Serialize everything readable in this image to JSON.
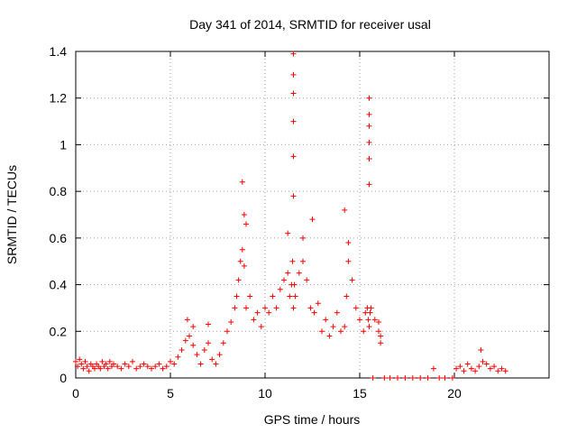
{
  "chart_data": {
    "type": "scatter",
    "title": "Day 341 of 2014, SRMTID for receiver usal",
    "xlabel": "GPS time / hours",
    "ylabel": "SRMTID / TECUs",
    "xlim": [
      0,
      25
    ],
    "ylim": [
      0,
      1.4
    ],
    "xticks": [
      0,
      5,
      10,
      15,
      20
    ],
    "xtick_labels": [
      "0",
      "5",
      "10",
      "15",
      "20"
    ],
    "yticks": [
      0,
      0.2,
      0.4,
      0.6,
      0.8,
      1.0,
      1.2,
      1.4
    ],
    "ytick_labels": [
      "0",
      "0.2",
      "0.4",
      "0.6",
      "0.8",
      "1",
      "1.2",
      "1.4"
    ],
    "grid": true,
    "marker": "+",
    "color": "#ff0000",
    "series": [
      {
        "name": "SRMTID",
        "x": [
          0.0,
          0.1,
          0.2,
          0.3,
          0.4,
          0.5,
          0.6,
          0.7,
          0.8,
          0.9,
          1.0,
          1.1,
          1.2,
          1.3,
          1.4,
          1.5,
          1.6,
          1.7,
          1.8,
          1.9,
          2.0,
          2.2,
          2.4,
          2.6,
          2.8,
          3.0,
          3.2,
          3.4,
          3.6,
          3.8,
          4.0,
          4.2,
          4.4,
          4.6,
          4.8,
          5.0,
          5.2,
          5.4,
          5.6,
          5.8,
          6.0,
          6.2,
          6.4,
          6.6,
          6.8,
          7.0,
          7.2,
          7.4,
          7.6,
          7.8,
          8.0,
          8.2,
          8.4,
          8.5,
          8.6,
          8.7,
          8.8,
          8.9,
          9.0,
          9.2,
          9.4,
          9.6,
          9.8,
          10.0,
          10.2,
          10.4,
          10.6,
          10.8,
          11.0,
          11.2,
          11.3,
          11.4,
          11.45,
          11.5,
          11.55,
          11.6,
          11.8,
          12.0,
          12.2,
          12.4,
          12.6,
          12.8,
          13.0,
          13.2,
          13.4,
          13.6,
          13.8,
          14.0,
          14.2,
          14.3,
          14.4,
          14.6,
          14.8,
          15.0,
          15.2,
          15.3,
          15.4,
          15.45,
          15.5,
          15.55,
          15.6,
          15.8,
          16.0,
          16.1,
          15.7,
          16.3,
          16.6,
          17.0,
          17.4,
          17.8,
          18.2,
          18.6,
          18.9,
          19.2,
          19.5,
          19.9,
          20.1,
          20.3,
          20.5,
          20.7,
          20.9,
          21.1,
          21.3,
          21.5,
          21.7,
          21.9,
          22.1,
          22.3,
          22.5,
          22.7,
          11.5,
          11.5,
          11.5,
          11.5,
          11.5,
          11.5,
          15.5,
          15.5,
          15.5,
          15.5,
          15.5,
          15.5,
          8.8,
          8.9,
          9.0,
          11.2,
          12.0,
          12.5,
          14.2,
          14.4,
          16.0,
          16.1,
          5.9,
          6.2,
          7.0,
          21.4
        ],
        "y": [
          0.07,
          0.05,
          0.08,
          0.06,
          0.04,
          0.07,
          0.05,
          0.03,
          0.06,
          0.05,
          0.04,
          0.06,
          0.05,
          0.04,
          0.07,
          0.05,
          0.06,
          0.04,
          0.07,
          0.05,
          0.06,
          0.05,
          0.04,
          0.06,
          0.05,
          0.07,
          0.04,
          0.05,
          0.06,
          0.05,
          0.04,
          0.05,
          0.06,
          0.04,
          0.05,
          0.07,
          0.06,
          0.09,
          0.12,
          0.16,
          0.18,
          0.14,
          0.1,
          0.06,
          0.12,
          0.15,
          0.08,
          0.06,
          0.1,
          0.15,
          0.2,
          0.24,
          0.3,
          0.35,
          0.42,
          0.5,
          0.55,
          0.48,
          0.3,
          0.35,
          0.25,
          0.28,
          0.22,
          0.3,
          0.28,
          0.35,
          0.3,
          0.38,
          0.42,
          0.45,
          0.35,
          0.4,
          0.5,
          0.3,
          0.4,
          0.35,
          0.45,
          0.5,
          0.42,
          0.3,
          0.28,
          0.32,
          0.2,
          0.25,
          0.18,
          0.22,
          0.28,
          0.2,
          0.22,
          0.35,
          0.5,
          0.42,
          0.3,
          0.25,
          0.2,
          0.28,
          0.3,
          0.25,
          0.22,
          0.28,
          0.3,
          0.25,
          0.2,
          0.15,
          0.0,
          0.0,
          0.0,
          0.0,
          0.0,
          0.0,
          0.0,
          0.0,
          0.04,
          0.0,
          0.0,
          0.0,
          0.04,
          0.05,
          0.03,
          0.06,
          0.04,
          0.03,
          0.05,
          0.07,
          0.06,
          0.04,
          0.05,
          0.03,
          0.04,
          0.03,
          1.39,
          1.3,
          1.22,
          1.1,
          0.95,
          0.78,
          1.2,
          1.13,
          1.08,
          1.01,
          0.94,
          0.83,
          0.84,
          0.7,
          0.66,
          0.62,
          0.6,
          0.68,
          0.72,
          0.58,
          0.24,
          0.18,
          0.25,
          0.22,
          0.23,
          0.12
        ]
      }
    ]
  }
}
